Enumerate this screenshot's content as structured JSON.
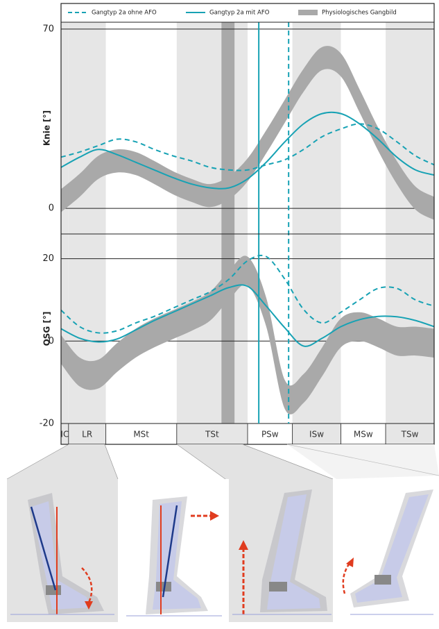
{
  "chart_data": [
    {
      "type": "line",
      "ylabel": "Knie [°]",
      "xlim": [
        0,
        100
      ],
      "ylim": [
        -10,
        80
      ],
      "yticks": [
        0,
        70
      ],
      "x": [
        0,
        5,
        10,
        15,
        20,
        25,
        30,
        35,
        40,
        45,
        50,
        55,
        60,
        65,
        70,
        75,
        80,
        85,
        90,
        95,
        100
      ],
      "series": [
        {
          "name": "Gangtyp 2a ohne AFO",
          "color": "#17a2b4",
          "dashed": true,
          "toe_off": 61,
          "values": [
            20,
            22,
            24.5,
            27,
            26,
            23,
            20.5,
            18.5,
            16,
            15,
            15,
            17,
            19,
            23,
            28,
            31,
            33,
            31,
            26,
            20.5,
            17
          ]
        },
        {
          "name": "Gangtyp 2a mit AFO",
          "color": "#17a2b4",
          "dashed": false,
          "toe_off": 53,
          "values": [
            16,
            20,
            23,
            21,
            18,
            15,
            12,
            9.5,
            8,
            8,
            11.5,
            18,
            26,
            33,
            37,
            37,
            33,
            27,
            20,
            15,
            13
          ]
        },
        {
          "name": "Physiologisches Gangbild",
          "color": "#a9a9a9",
          "band": true,
          "toe_off": [
            43,
            46.5
          ],
          "upper": [
            7.5,
            13.5,
            20.5,
            23,
            22,
            18.5,
            14.5,
            11.5,
            9.5,
            12.5,
            19.5,
            30.5,
            42.5,
            54.5,
            63,
            60.5,
            46.5,
            31.5,
            18.5,
            8.5,
            4.5
          ],
          "lower": [
            -1.5,
            4.5,
            11.5,
            14,
            13,
            9.5,
            5.5,
            2.5,
            0.5,
            3.5,
            10.5,
            21.5,
            33.5,
            45.5,
            54,
            51.5,
            37.5,
            22.5,
            9.5,
            -0.5,
            -4.5
          ]
        }
      ]
    },
    {
      "type": "line",
      "ylabel": "OSG [°]",
      "xlim": [
        0,
        100
      ],
      "ylim": [
        -20,
        26
      ],
      "yticks": [
        -20,
        0,
        20
      ],
      "x": [
        0,
        5,
        10,
        15,
        20,
        25,
        30,
        35,
        40,
        45,
        50,
        55,
        60,
        65,
        70,
        75,
        80,
        85,
        90,
        95,
        100
      ],
      "phases": [
        "IC",
        "LR",
        "MSt",
        "TSt",
        "PSw",
        "ISw",
        "MSw",
        "TSw"
      ],
      "phase_bounds": [
        0,
        2,
        12,
        31,
        50,
        62,
        75,
        87,
        100
      ],
      "phase_shading": [
        true,
        true,
        false,
        true,
        false,
        true,
        false,
        true
      ],
      "series": [
        {
          "color": "#17a2b4",
          "dashed": true,
          "values": [
            7.5,
            3.5,
            2,
            2.5,
            4.4,
            6,
            8,
            10,
            12,
            15,
            19.5,
            20.5,
            15,
            7.7,
            4.4,
            7,
            10,
            12.8,
            12.8,
            10,
            8.5
          ]
        },
        {
          "color": "#17a2b4",
          "dashed": false,
          "values": [
            3,
            0.7,
            -0.2,
            0.5,
            2.7,
            5,
            7,
            9,
            11,
            13,
            13.3,
            8.5,
            3.2,
            -1.2,
            0.7,
            3.5,
            5.2,
            6,
            5.9,
            5,
            3.5
          ]
        },
        {
          "color": "#a9a9a9",
          "band": true,
          "upper": [
            1.5,
            -4,
            -4.5,
            -0.5,
            3,
            5.5,
            7.5,
            9.5,
            12,
            17,
            20.5,
            10.5,
            -9.5,
            -8,
            -1.5,
            5.5,
            7,
            5.5,
            3.5,
            3.5,
            3
          ],
          "lower": [
            -5.5,
            -11,
            -11.5,
            -7.5,
            -4,
            -1.5,
            0.5,
            2.5,
            5,
            10,
            13.5,
            3.5,
            -16.5,
            -15,
            -8.5,
            -1.5,
            0,
            -1.5,
            -3.5,
            -3.5,
            -4
          ]
        }
      ]
    }
  ]
}
